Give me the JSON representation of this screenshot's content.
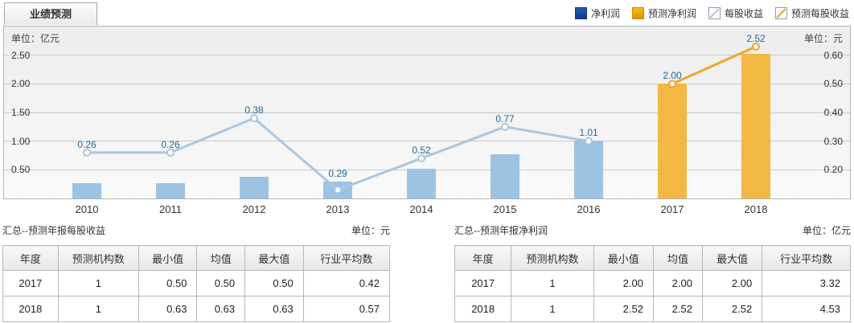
{
  "tab": {
    "label": "业绩预测"
  },
  "legend": {
    "items": [
      {
        "label": "净利润",
        "icon": "bar-swatch-dark-blue",
        "color": "#123a85"
      },
      {
        "label": "预测净利润",
        "icon": "bar-swatch-orange",
        "color": "#eea500"
      },
      {
        "label": "每股收益",
        "icon": "line-swatch-blue",
        "color": "#a9c7e3"
      },
      {
        "label": "预测每股收益",
        "icon": "line-swatch-orange",
        "color": "#f0a42e"
      }
    ]
  },
  "chart_data": {
    "type": "combo-bar-line",
    "categories": [
      "2010",
      "2011",
      "2012",
      "2013",
      "2014",
      "2015",
      "2016",
      "2017",
      "2018"
    ],
    "series": [
      {
        "name": "净利润",
        "type": "bar",
        "axis": "left",
        "unit": "亿元",
        "color": "#9cc3e2",
        "values": [
          0.26,
          0.26,
          0.38,
          0.29,
          0.52,
          0.77,
          1.01,
          null,
          null
        ]
      },
      {
        "name": "预测净利润",
        "type": "bar",
        "axis": "left",
        "unit": "亿元",
        "color": "#f3b844",
        "values": [
          null,
          null,
          null,
          null,
          null,
          null,
          null,
          2.0,
          2.52
        ]
      },
      {
        "name": "每股收益",
        "type": "line",
        "axis": "right",
        "unit": "元",
        "color": "#a9c7e3",
        "values": [
          0.26,
          0.26,
          0.38,
          0.13,
          0.24,
          0.35,
          0.3,
          null,
          null
        ]
      },
      {
        "name": "预测每股收益",
        "type": "line",
        "axis": "right",
        "unit": "元",
        "color": "#f0a42e",
        "values": [
          null,
          null,
          null,
          null,
          null,
          null,
          null,
          0.5,
          0.63
        ]
      }
    ],
    "point_labels": [
      "0.26",
      "0.26",
      "0.38",
      "0.29",
      "0.52",
      "0.77",
      "1.01",
      "2.00",
      "2.52"
    ],
    "left_axis": {
      "unit_label": "单位：亿元",
      "ticks": [
        "2.50",
        "2.00",
        "1.50",
        "1.00",
        "0.50"
      ],
      "range": [
        0,
        3.0
      ]
    },
    "right_axis": {
      "unit_label": "单位：元",
      "ticks": [
        "0.60",
        "0.50",
        "0.40",
        "0.30",
        "0.20"
      ],
      "range": [
        0.1,
        0.7
      ]
    },
    "grid": true,
    "legend_position": "top-right",
    "title": "业绩预测"
  },
  "tables": [
    {
      "title": "汇总--预测年报每股收益",
      "unit": "单位：元",
      "headers": [
        "年度",
        "预测机构数",
        "最小值",
        "均值",
        "最大值",
        "行业平均数"
      ],
      "col_widths": [
        "14.3%",
        "20.8%",
        "15.1%",
        "12.4%",
        "15.1%",
        "22.3%"
      ],
      "rows": [
        [
          "2017",
          "1",
          "0.50",
          "0.50",
          "0.50",
          "0.42"
        ],
        [
          "2018",
          "1",
          "0.63",
          "0.63",
          "0.63",
          "0.57"
        ]
      ]
    },
    {
      "title": "汇总--预测年报净利润",
      "unit": "单位：亿元",
      "headers": [
        "年度",
        "预测机构数",
        "最小值",
        "均值",
        "最大值",
        "行业平均数"
      ],
      "col_widths": [
        "14.3%",
        "20.8%",
        "15.1%",
        "12.4%",
        "15.1%",
        "22.3%"
      ],
      "rows": [
        [
          "2017",
          "1",
          "2.00",
          "2.00",
          "2.00",
          "3.32"
        ],
        [
          "2018",
          "1",
          "2.52",
          "2.52",
          "2.52",
          "4.53"
        ]
      ]
    }
  ]
}
